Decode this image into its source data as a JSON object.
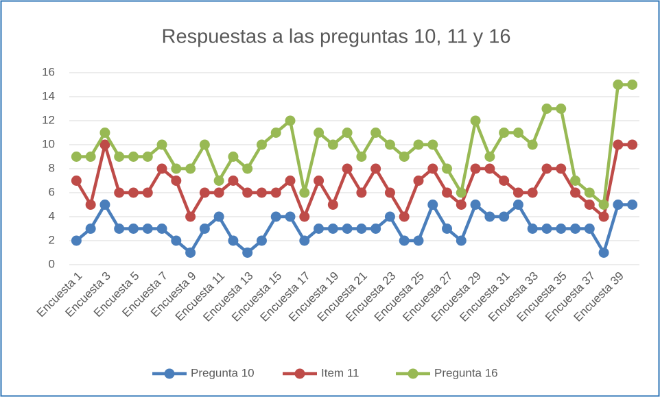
{
  "chart_data": {
    "type": "line",
    "title": "Respuestas a las preguntas 10, 11 y 16",
    "categories": [
      "Encuesta 1",
      null,
      "Encuesta 3",
      null,
      "Encuesta 5",
      null,
      "Encuesta 7",
      null,
      "Encuesta 9",
      null,
      "Encuesta 11",
      null,
      "Encuesta 13",
      null,
      "Encuesta 15",
      null,
      "Encuesta 17",
      null,
      "Encuesta 19",
      null,
      "Encuesta 21",
      null,
      "Encuesta 23",
      null,
      "Encuesta 25",
      null,
      "Encuesta 27",
      null,
      "Encuesta 29",
      null,
      "Encuesta 31",
      null,
      "Encuesta 33",
      null,
      "Encuesta 35",
      null,
      "Encuesta 37",
      null,
      "Encuesta 39",
      null
    ],
    "series": [
      {
        "name": "Pregunta 10",
        "color": "#4a7ebb",
        "values": [
          2,
          3,
          5,
          3,
          3,
          3,
          3,
          2,
          1,
          3,
          4,
          2,
          1,
          2,
          4,
          4,
          2,
          3,
          3,
          3,
          3,
          3,
          4,
          2,
          2,
          5,
          3,
          2,
          5,
          4,
          4,
          5,
          3,
          3,
          3,
          3,
          3,
          1,
          5,
          5
        ]
      },
      {
        "name": "Item 11",
        "color": "#be4b48",
        "values": [
          7,
          5,
          10,
          6,
          6,
          6,
          8,
          7,
          4,
          6,
          6,
          7,
          6,
          6,
          6,
          7,
          4,
          7,
          5,
          8,
          6,
          8,
          6,
          4,
          7,
          8,
          6,
          5,
          8,
          8,
          7,
          6,
          6,
          8,
          8,
          6,
          5,
          4,
          10,
          10
        ]
      },
      {
        "name": "Pregunta 16",
        "color": "#98b954",
        "values": [
          9,
          9,
          11,
          9,
          9,
          9,
          10,
          8,
          8,
          10,
          7,
          9,
          8,
          10,
          11,
          12,
          6,
          11,
          10,
          11,
          9,
          11,
          10,
          9,
          10,
          10,
          8,
          6,
          12,
          9,
          11,
          11,
          10,
          13,
          13,
          7,
          6,
          5,
          15,
          15
        ]
      }
    ],
    "ylim": [
      0,
      16
    ],
    "yticks": [
      0,
      2,
      4,
      6,
      8,
      10,
      12,
      14,
      16
    ],
    "grid": true,
    "legend": "bottom"
  }
}
